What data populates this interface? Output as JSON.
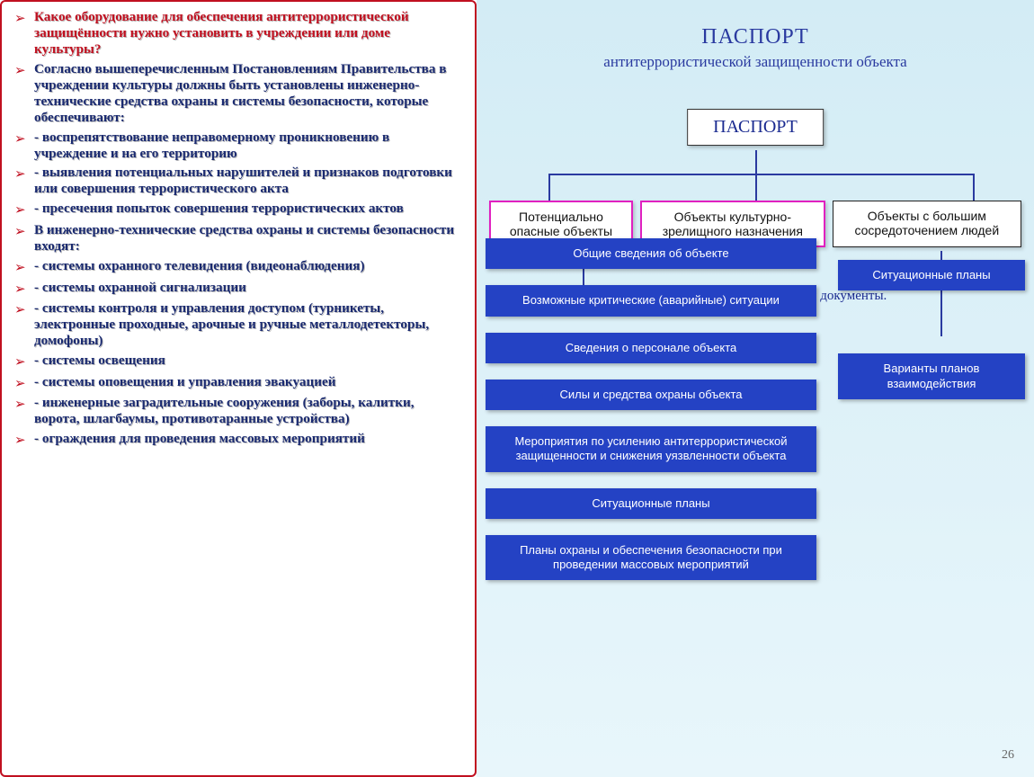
{
  "left": {
    "bullets": [
      {
        "highlight": true,
        "text": "Какое оборудование для обеспечения антитеррористической защищённости нужно установить в учреждении или доме культуры?"
      },
      {
        "highlight": false,
        "text": "Согласно вышеперечисленным Постановлениям Правительства в учреждении культуры должны быть установлены инженерно-технические средства охраны и системы безопасности, которые обеспечивают:"
      },
      {
        "highlight": false,
        "text": "- воспрепятствование неправомерному проникновению в учреждение и на его территорию"
      },
      {
        "highlight": false,
        "text": "- выявления потенциальных нарушителей и признаков подготовки или совершения террористического акта"
      },
      {
        "highlight": false,
        "text": "- пресечения попыток совершения террористических актов"
      },
      {
        "highlight": false,
        "text": "В инженерно-технические средства охраны и системы безопасности входят:"
      },
      {
        "highlight": false,
        "text": "- системы охранного телевидения (видеонаблюдения)"
      },
      {
        "highlight": false,
        "text": "- системы охранной сигнализации"
      },
      {
        "highlight": false,
        "text": "- системы контроля и управления доступом (турникеты, электронные проходные, арочные и ручные металлодетекторы, домофоны)"
      },
      {
        "highlight": false,
        "text": "- системы освещения"
      },
      {
        "highlight": false,
        "text": "- системы оповещения и управления эвакуацией"
      },
      {
        "highlight": false,
        "text": "- инженерные заградительные сооружения (заборы, калитки, ворота, шлагбаумы, противотаранные устройства)"
      },
      {
        "highlight": false,
        "text": "- ограждения для проведения массовых мероприятий"
      }
    ]
  },
  "right": {
    "title_main": "ПАСПОРТ",
    "title_sub": "антитеррористической защищенности объекта",
    "root": "ПАСПОРТ",
    "cats": [
      {
        "text": "Потенциально опасные объекты",
        "style": "magenta"
      },
      {
        "text": "Объекты культурно-зрелищного назначения",
        "style": "magenta"
      },
      {
        "text": "Объекты с большим сосредоточением людей",
        "style": "black"
      }
    ],
    "recommend": "Рекомендованные для разработки документы.",
    "col_left": [
      "Общие сведения об объекте",
      "Возможные критические (аварийные) ситуации",
      "Сведения о персонале объекта",
      "Силы и средства охраны объекта",
      "Мероприятия по усилению антитеррористической защищенности и снижения уязвленности объекта",
      "Ситуационные планы",
      "Планы охраны и обеспечения безопасности при проведении массовых мероприятий"
    ],
    "col_right": [
      "Ситуационные планы",
      "Варианты планов взаимодействия"
    ],
    "pagenum": "26"
  },
  "colors": {
    "blue_box": "#2442c4",
    "border_red": "#c01020",
    "magenta": "#e020c0",
    "heading_blue": "#2a3aa0"
  }
}
